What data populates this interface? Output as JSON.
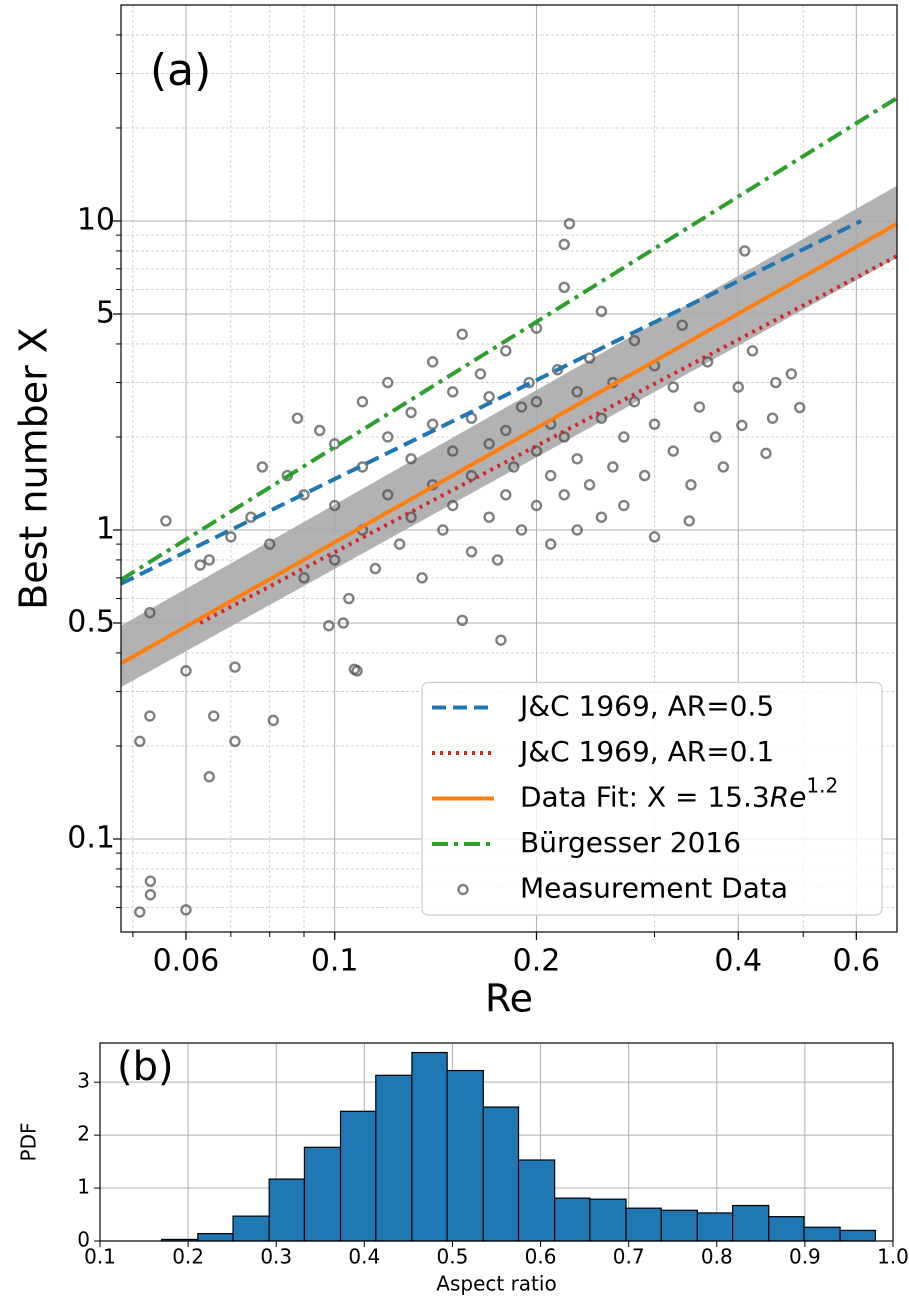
{
  "chart_data": [
    {
      "type": "scatter_lines",
      "annotation": "(a)",
      "xlabel": "Re",
      "ylabel": "Best number X",
      "xscale": "log",
      "yscale": "log",
      "xlim": [
        0.048,
        0.69
      ],
      "ylim": [
        0.05,
        50
      ],
      "xticks": [
        0.06,
        0.1,
        0.2,
        0.4,
        0.6
      ],
      "yticks": [
        0.1,
        0.5,
        1,
        5,
        10
      ],
      "grid": true,
      "minor_grid": true,
      "legend": "lower right",
      "band": {
        "color": "#aaaaaa",
        "x": [
          0.048,
          0.69
        ],
        "lower": [
          0.31,
          7.6
        ],
        "upper": [
          0.49,
          13
        ]
      },
      "series": [
        {
          "name": "J&C 1969, AR=0.5",
          "type": "line",
          "style": "dashed",
          "color": "#1f77b4",
          "x": [
            0.048,
            0.61
          ],
          "values": [
            0.67,
            10
          ]
        },
        {
          "name": "J&C 1969, AR=0.1",
          "type": "line",
          "style": "dotted",
          "color": "#d62728",
          "x": [
            0.063,
            0.69
          ],
          "values": [
            0.5,
            7.7
          ]
        },
        {
          "name": "Data Fit: X = 15.3$Re^{1.2}$",
          "type": "line",
          "style": "solid",
          "color": "#ff7f0e",
          "x": [
            0.048,
            0.69
          ],
          "values": [
            0.37,
            9.8
          ]
        },
        {
          "name": "Bürgesser 2016",
          "type": "line",
          "style": "dashdot",
          "color": "#2ca02c",
          "x": [
            0.048,
            0.69
          ],
          "values": [
            0.69,
            25
          ]
        },
        {
          "name": "Measurement Data",
          "type": "scatter",
          "color": "#4a4a4a",
          "x": [
            0.0512,
            0.0531,
            0.0531,
            0.06,
            0.0512,
            0.053,
            0.065,
            0.066,
            0.071,
            0.081,
            0.06,
            0.071,
            0.107,
            0.177,
            0.155,
            0.056,
            0.338,
            0.494,
            0.224,
            0.22,
            0.409,
            0.455,
            0.44,
            0.405,
            0.063,
            0.053,
            0.098,
            0.103,
            0.108,
            0.08,
            0.085,
            0.09,
            0.09,
            0.095,
            0.1,
            0.1,
            0.1,
            0.105,
            0.11,
            0.11,
            0.11,
            0.115,
            0.12,
            0.12,
            0.12,
            0.125,
            0.13,
            0.13,
            0.13,
            0.135,
            0.14,
            0.14,
            0.14,
            0.145,
            0.15,
            0.15,
            0.15,
            0.155,
            0.16,
            0.16,
            0.16,
            0.165,
            0.17,
            0.17,
            0.17,
            0.175,
            0.18,
            0.18,
            0.18,
            0.185,
            0.19,
            0.19,
            0.195,
            0.2,
            0.2,
            0.2,
            0.2,
            0.21,
            0.21,
            0.21,
            0.215,
            0.22,
            0.22,
            0.22,
            0.23,
            0.23,
            0.23,
            0.24,
            0.24,
            0.25,
            0.25,
            0.25,
            0.26,
            0.26,
            0.27,
            0.27,
            0.28,
            0.28,
            0.29,
            0.3,
            0.3,
            0.3,
            0.32,
            0.32,
            0.33,
            0.34,
            0.35,
            0.36,
            0.37,
            0.38,
            0.4,
            0.42,
            0.45,
            0.48,
            0.075,
            0.07,
            0.065,
            0.078,
            0.088
          ],
          "values": [
            0.058,
            0.073,
            0.066,
            0.059,
            0.207,
            0.25,
            0.159,
            0.25,
            0.207,
            0.242,
            0.35,
            0.36,
            0.354,
            0.44,
            0.51,
            1.07,
            1.07,
            2.49,
            9.8,
            8.4,
            8.0,
            3.0,
            1.77,
            2.18,
            0.77,
            0.54,
            0.49,
            0.5,
            0.35,
            0.9,
            1.5,
            0.7,
            1.3,
            2.1,
            0.8,
            1.2,
            1.9,
            0.6,
            1.0,
            1.6,
            2.6,
            0.75,
            1.3,
            2.0,
            3.0,
            0.9,
            1.1,
            1.7,
            2.4,
            0.7,
            1.4,
            2.2,
            3.5,
            1.0,
            1.2,
            1.8,
            2.8,
            4.3,
            0.85,
            1.5,
            2.3,
            3.2,
            1.1,
            1.9,
            2.7,
            0.8,
            1.3,
            2.1,
            3.8,
            1.6,
            2.5,
            1.0,
            3.0,
            1.2,
            1.8,
            2.6,
            4.5,
            0.9,
            1.5,
            2.2,
            3.3,
            1.3,
            2.0,
            6.1,
            1.0,
            1.7,
            2.8,
            1.4,
            3.6,
            1.1,
            2.3,
            5.1,
            1.6,
            3.0,
            1.2,
            2.0,
            2.6,
            4.1,
            1.5,
            2.2,
            3.4,
            0.95,
            1.8,
            2.9,
            4.6,
            1.4,
            2.5,
            3.5,
            2.0,
            1.6,
            2.9,
            3.8,
            2.3,
            3.2,
            1.1,
            0.95,
            0.8,
            1.6,
            2.3
          ]
        }
      ]
    },
    {
      "type": "histogram",
      "annotation": "(b)",
      "xlabel": "Aspect ratio",
      "ylabel": "PDF",
      "color": "#1f77b4",
      "edgecolor": "#000000",
      "bins": [
        0.17,
        0.211,
        0.251,
        0.292,
        0.332,
        0.373,
        0.413,
        0.454,
        0.494,
        0.535,
        0.575,
        0.616,
        0.656,
        0.697,
        0.737,
        0.778,
        0.818,
        0.859,
        0.899,
        0.94,
        0.98
      ],
      "values": [
        0.03,
        0.14,
        0.47,
        1.17,
        1.77,
        2.45,
        3.13,
        3.56,
        3.22,
        2.53,
        1.53,
        0.81,
        0.79,
        0.62,
        0.58,
        0.53,
        0.67,
        0.46,
        0.26,
        0.2
      ],
      "xlim": [
        0.1,
        1.0
      ],
      "ylim": [
        0,
        3.74
      ],
      "xticks": [
        0.1,
        0.2,
        0.3,
        0.4,
        0.5,
        0.6,
        0.7,
        0.8,
        0.9,
        {
          "value": 1.0,
          "label": "1.0"
        }
      ],
      "yticks": [
        0,
        1,
        2,
        3
      ],
      "grid": true
    }
  ]
}
